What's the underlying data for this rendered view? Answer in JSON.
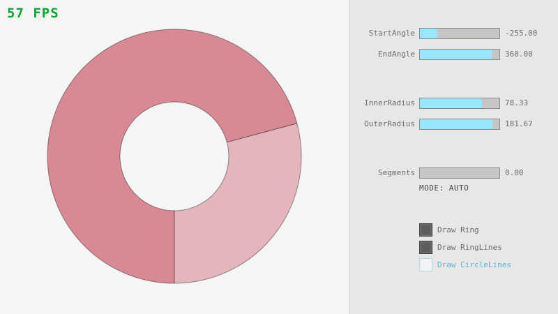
{
  "fps": {
    "text": "57 FPS",
    "color": "#00a82f"
  },
  "ring": {
    "colors": {
      "dark": "#d98994",
      "light": "#e5b5bc",
      "outline": "rgba(0,0,0,0.42)"
    }
  },
  "panel": {
    "slider_fill_color": "#97e8ff",
    "accent_blue": "#5fb4d9",
    "sliders": [
      {
        "id": "start-angle",
        "label": "StartAngle",
        "value": "-255.00",
        "fill_pct": 21.7
      },
      {
        "id": "end-angle",
        "label": "EndAngle",
        "value": "360.00",
        "fill_pct": 90.0
      },
      {
        "id": "inner-radius",
        "label": "InnerRadius",
        "value": "78.33",
        "fill_pct": 78.3
      },
      {
        "id": "outer-radius",
        "label": "OuterRadius",
        "value": "181.67",
        "fill_pct": 90.8
      },
      {
        "id": "segments",
        "label": "Segments",
        "value": "0.00",
        "fill_pct": 0
      }
    ],
    "mode_text": "MODE: AUTO",
    "checkboxes": [
      {
        "id": "draw-ring",
        "label": "Draw Ring",
        "checked": true
      },
      {
        "id": "draw-ringlines",
        "label": "Draw RingLines",
        "checked": true
      },
      {
        "id": "draw-circlelines",
        "label": "Draw CircleLines",
        "checked": false
      }
    ]
  }
}
